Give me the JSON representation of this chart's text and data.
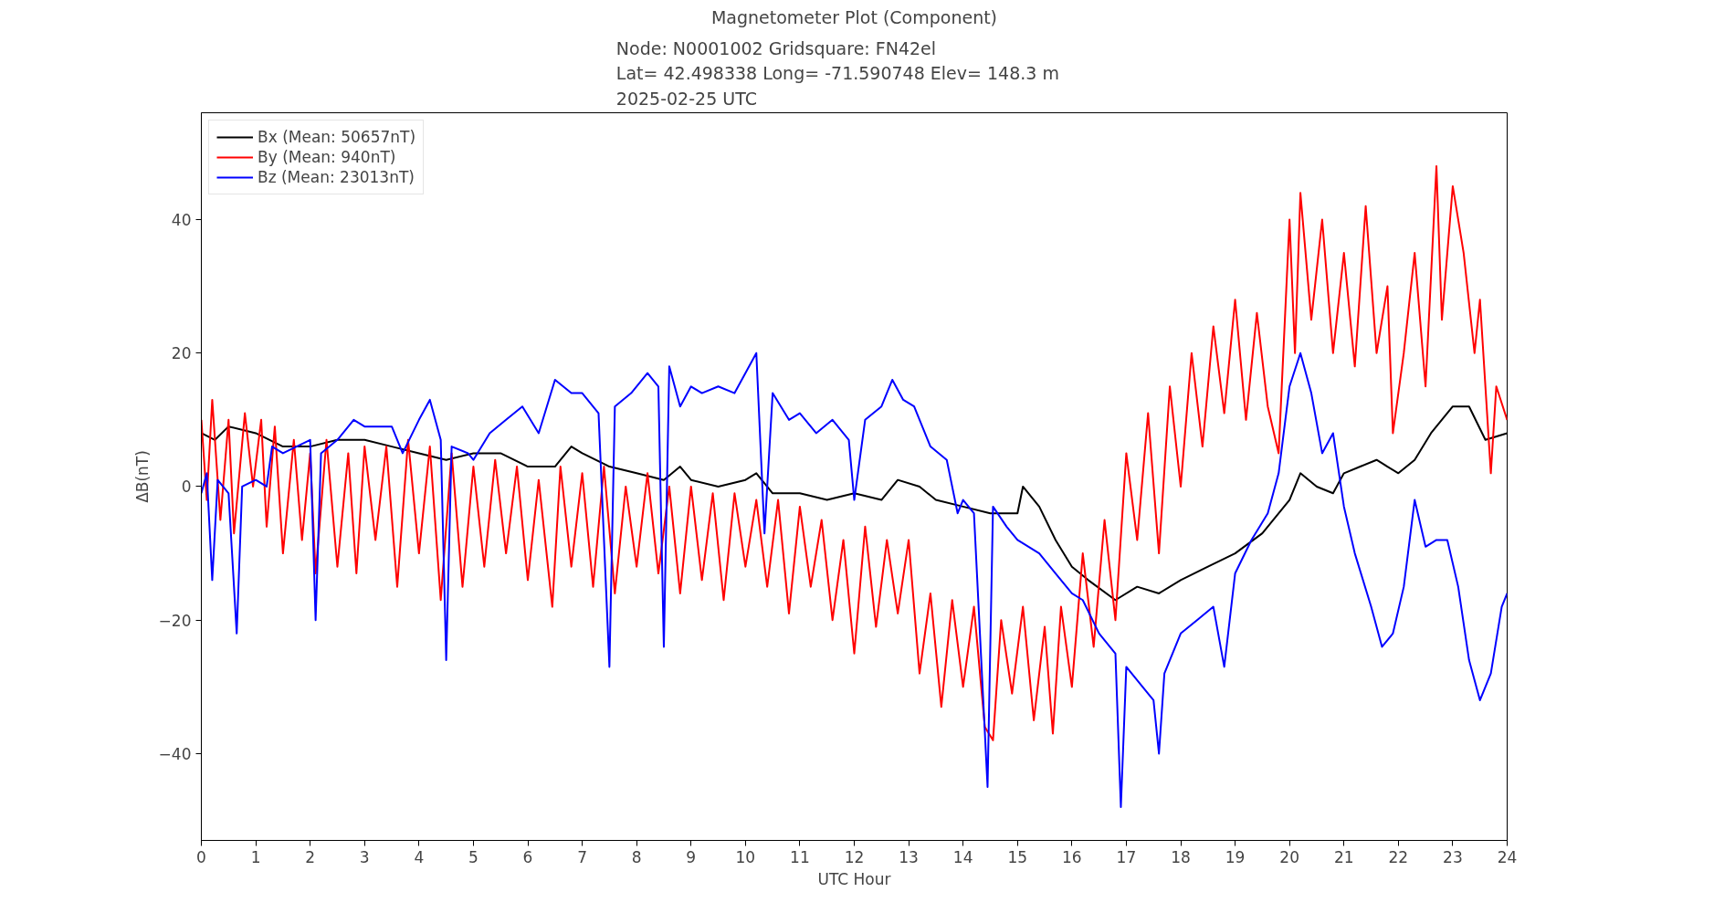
{
  "chart_data": {
    "type": "line",
    "title": "Magnetometer Plot (Component)",
    "subtitle": "Node:  N0001002     Gridsquare:  FN42el\nLat= 42.498338    Long= -71.590748    Elev= 148.3 m\n2025-02-25  UTC",
    "xlabel": "UTC Hour",
    "ylabel": "ΔB(nT)",
    "xlim": [
      0,
      24
    ],
    "xticks": [
      0,
      1,
      2,
      3,
      4,
      5,
      6,
      7,
      8,
      9,
      10,
      11,
      12,
      13,
      14,
      15,
      16,
      17,
      18,
      19,
      20,
      21,
      22,
      23,
      24
    ],
    "ylim": [
      -53,
      56
    ],
    "yticks": [
      -40,
      -20,
      0,
      20,
      40
    ],
    "grid": false,
    "legend": "top left",
    "line_style": "solid",
    "marker": "none",
    "series": [
      {
        "name": "Bx (Mean: 50657nT)",
        "color": "#000000",
        "x": [
          0,
          0.25,
          0.5,
          1,
          1.5,
          2,
          2.5,
          3,
          3.5,
          4,
          4.5,
          5,
          5.5,
          6,
          6.5,
          6.8,
          7,
          7.5,
          8,
          8.5,
          8.8,
          9,
          9.5,
          10,
          10.2,
          10.5,
          11,
          11.5,
          12,
          12.5,
          12.8,
          13.2,
          13.5,
          14,
          14.5,
          15,
          15.1,
          15.4,
          15.7,
          16,
          16.3,
          16.8,
          17.2,
          17.6,
          18,
          18.5,
          19,
          19.5,
          20,
          20.2,
          20.5,
          20.8,
          21,
          21.3,
          21.6,
          21.8,
          22,
          22.3,
          22.6,
          23,
          23.3,
          23.6,
          24
        ],
        "values": [
          8,
          7,
          9,
          8,
          6,
          6,
          7,
          7,
          6,
          5,
          4,
          5,
          5,
          3,
          3,
          6,
          5,
          3,
          2,
          1,
          3,
          1,
          0,
          1,
          2,
          -1,
          -1,
          -2,
          -1,
          -2,
          1,
          0,
          -2,
          -3,
          -4,
          -4,
          0,
          -3,
          -8,
          -12,
          -14,
          -17,
          -15,
          -16,
          -14,
          -12,
          -10,
          -7,
          -2,
          2,
          0,
          -1,
          2,
          3,
          4,
          3,
          2,
          4,
          8,
          12,
          12,
          7,
          8
        ]
      },
      {
        "name": "By (Mean: 940nT)",
        "color": "#ff0000",
        "x": [
          0,
          0.1,
          0.2,
          0.35,
          0.5,
          0.6,
          0.8,
          0.95,
          1.1,
          1.2,
          1.35,
          1.5,
          1.7,
          1.85,
          2,
          2.1,
          2.3,
          2.5,
          2.7,
          2.85,
          3,
          3.2,
          3.4,
          3.6,
          3.8,
          4,
          4.2,
          4.4,
          4.6,
          4.8,
          5,
          5.2,
          5.4,
          5.6,
          5.8,
          6,
          6.2,
          6.45,
          6.6,
          6.8,
          7,
          7.2,
          7.4,
          7.6,
          7.8,
          8,
          8.2,
          8.4,
          8.6,
          8.8,
          9,
          9.2,
          9.4,
          9.6,
          9.8,
          10,
          10.2,
          10.4,
          10.6,
          10.8,
          11,
          11.2,
          11.4,
          11.6,
          11.8,
          12,
          12.2,
          12.4,
          12.6,
          12.8,
          13,
          13.2,
          13.4,
          13.6,
          13.8,
          14,
          14.2,
          14.4,
          14.55,
          14.7,
          14.9,
          15.1,
          15.3,
          15.5,
          15.65,
          15.8,
          16,
          16.2,
          16.4,
          16.6,
          16.8,
          17,
          17.2,
          17.4,
          17.6,
          17.8,
          18,
          18.2,
          18.4,
          18.6,
          18.8,
          19,
          19.2,
          19.4,
          19.6,
          19.8,
          20,
          20.1,
          20.2,
          20.4,
          20.6,
          20.8,
          21,
          21.2,
          21.4,
          21.6,
          21.8,
          21.9,
          22.1,
          22.3,
          22.5,
          22.7,
          22.8,
          23,
          23.2,
          23.4,
          23.5,
          23.7,
          23.8,
          24
        ],
        "values": [
          10,
          -2,
          13,
          -5,
          10,
          -7,
          11,
          0,
          10,
          -6,
          9,
          -10,
          7,
          -8,
          5,
          -13,
          7,
          -12,
          5,
          -13,
          6,
          -8,
          6,
          -15,
          7,
          -10,
          6,
          -17,
          5,
          -15,
          3,
          -12,
          4,
          -10,
          3,
          -14,
          1,
          -18,
          3,
          -12,
          2,
          -15,
          3,
          -16,
          0,
          -12,
          2,
          -13,
          0,
          -16,
          0,
          -14,
          -1,
          -17,
          -1,
          -12,
          -2,
          -15,
          -2,
          -19,
          -3,
          -15,
          -5,
          -20,
          -8,
          -25,
          -6,
          -21,
          -8,
          -19,
          -8,
          -28,
          -16,
          -33,
          -17,
          -30,
          -18,
          -36,
          -38,
          -20,
          -31,
          -18,
          -35,
          -21,
          -37,
          -18,
          -30,
          -10,
          -24,
          -5,
          -20,
          5,
          -8,
          11,
          -10,
          15,
          0,
          20,
          6,
          24,
          11,
          28,
          10,
          26,
          12,
          5,
          40,
          20,
          44,
          25,
          40,
          20,
          35,
          18,
          42,
          20,
          30,
          8,
          20,
          35,
          15,
          48,
          25,
          45,
          35,
          20,
          28,
          2,
          15,
          10
        ]
      },
      {
        "name": "Bz (Mean: 23013nT)",
        "color": "#0000ff",
        "x": [
          0,
          0.1,
          0.2,
          0.3,
          0.5,
          0.65,
          0.75,
          1,
          1.2,
          1.3,
          1.5,
          2,
          2.1,
          2.2,
          2.5,
          2.8,
          3,
          3.5,
          3.7,
          4,
          4.2,
          4.4,
          4.5,
          4.6,
          4.9,
          5,
          5.3,
          5.6,
          5.9,
          6.2,
          6.5,
          6.8,
          7,
          7.3,
          7.5,
          7.6,
          7.9,
          8.2,
          8.4,
          8.5,
          8.6,
          8.8,
          9,
          9.2,
          9.5,
          9.8,
          10.2,
          10.35,
          10.5,
          10.8,
          11,
          11.3,
          11.6,
          11.9,
          12,
          12.2,
          12.5,
          12.7,
          12.9,
          13.1,
          13.4,
          13.7,
          13.9,
          14,
          14.2,
          14.45,
          14.55,
          14.8,
          15,
          15.4,
          15.7,
          16,
          16.2,
          16.5,
          16.8,
          16.9,
          17,
          17.3,
          17.5,
          17.6,
          17.7,
          18,
          18.3,
          18.6,
          18.8,
          19,
          19.3,
          19.6,
          19.8,
          20,
          20.2,
          20.4,
          20.6,
          20.8,
          21,
          21.2,
          21.5,
          21.7,
          21.9,
          22.1,
          22.3,
          22.5,
          22.7,
          22.9,
          23.1,
          23.3,
          23.5,
          23.7,
          23.9,
          24
        ],
        "values": [
          -1,
          2,
          -14,
          1,
          -1,
          -22,
          0,
          1,
          0,
          6,
          5,
          7,
          -20,
          5,
          7,
          10,
          9,
          9,
          5,
          10,
          13,
          7,
          -26,
          6,
          5,
          4,
          8,
          10,
          12,
          8,
          16,
          14,
          14,
          11,
          -27,
          12,
          14,
          17,
          15,
          -24,
          18,
          12,
          15,
          14,
          15,
          14,
          20,
          -7,
          14,
          10,
          11,
          8,
          10,
          7,
          -2,
          10,
          12,
          16,
          13,
          12,
          6,
          4,
          -4,
          -2,
          -4,
          -45,
          -3,
          -6,
          -8,
          -10,
          -13,
          -16,
          -17,
          -22,
          -25,
          -48,
          -27,
          -30,
          -32,
          -40,
          -28,
          -22,
          -20,
          -18,
          -27,
          -13,
          -8,
          -4,
          2,
          15,
          20,
          14,
          5,
          8,
          -3,
          -10,
          -18,
          -24,
          -22,
          -15,
          -2,
          -9,
          -8,
          -8,
          -15,
          -26,
          -32,
          -28,
          -18,
          -16
        ]
      }
    ]
  }
}
